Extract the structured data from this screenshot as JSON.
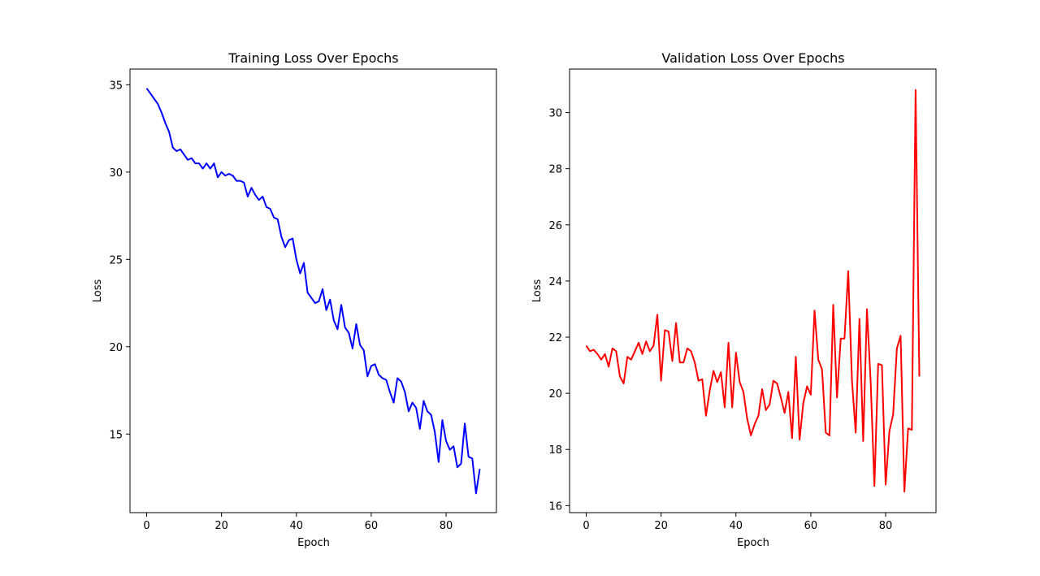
{
  "chart_data": [
    {
      "type": "line",
      "title": "Training Loss Over Epochs",
      "xlabel": "Epoch",
      "ylabel": "Loss",
      "xlim": [
        -4.45,
        93.45
      ],
      "ylim": [
        10.5,
        35.9
      ],
      "xticks": [
        0,
        20,
        40,
        60,
        80
      ],
      "yticks": [
        15,
        20,
        25,
        30,
        35
      ],
      "grid": false,
      "legend": "none",
      "series": [
        {
          "color": "#0000ff",
          "x": [
            0,
            1,
            2,
            3,
            4,
            5,
            6,
            7,
            8,
            9,
            10,
            11,
            12,
            13,
            14,
            15,
            16,
            17,
            18,
            19,
            20,
            21,
            22,
            23,
            24,
            25,
            26,
            27,
            28,
            29,
            30,
            31,
            32,
            33,
            34,
            35,
            36,
            37,
            38,
            39,
            40,
            41,
            42,
            43,
            44,
            45,
            46,
            47,
            48,
            49,
            50,
            51,
            52,
            53,
            54,
            55,
            56,
            57,
            58,
            59,
            60,
            61,
            62,
            63,
            64,
            65,
            66,
            67,
            68,
            69,
            70,
            71,
            72,
            73,
            74,
            75,
            76,
            77,
            78,
            79,
            80,
            81,
            82,
            83,
            84,
            85,
            86,
            87,
            88,
            89
          ],
          "y": [
            34.8,
            34.5,
            34.2,
            33.9,
            33.4,
            32.8,
            32.3,
            31.4,
            31.2,
            31.3,
            31.0,
            30.7,
            30.8,
            30.5,
            30.5,
            30.2,
            30.5,
            30.2,
            30.5,
            29.7,
            30.0,
            29.8,
            29.9,
            29.8,
            29.5,
            29.5,
            29.4,
            28.6,
            29.1,
            28.7,
            28.4,
            28.6,
            28.0,
            27.9,
            27.4,
            27.3,
            26.3,
            25.7,
            26.1,
            26.2,
            25.0,
            24.2,
            24.8,
            23.1,
            22.8,
            22.5,
            22.6,
            23.3,
            22.1,
            22.7,
            21.5,
            21.0,
            22.4,
            21.1,
            20.8,
            19.9,
            21.3,
            20.1,
            19.8,
            18.3,
            18.9,
            19.0,
            18.4,
            18.2,
            18.1,
            17.4,
            16.8,
            18.2,
            18.0,
            17.4,
            16.3,
            16.8,
            16.5,
            15.3,
            16.9,
            16.3,
            16.1,
            15.1,
            13.4,
            15.8,
            14.6,
            14.1,
            14.3,
            13.1,
            13.3,
            15.6,
            13.7,
            13.6,
            11.6,
            13.0
          ]
        }
      ]
    },
    {
      "type": "line",
      "title": "Validation Loss Over Epochs",
      "xlabel": "Epoch",
      "ylabel": "Loss",
      "xlim": [
        -4.45,
        93.45
      ],
      "ylim": [
        15.75,
        31.55
      ],
      "xticks": [
        0,
        20,
        40,
        60,
        80
      ],
      "yticks": [
        16,
        18,
        20,
        22,
        24,
        26,
        28,
        30
      ],
      "grid": false,
      "legend": "none",
      "series": [
        {
          "color": "#ff0000",
          "x": [
            0,
            1,
            2,
            3,
            4,
            5,
            6,
            7,
            8,
            9,
            10,
            11,
            12,
            13,
            14,
            15,
            16,
            17,
            18,
            19,
            20,
            21,
            22,
            23,
            24,
            25,
            26,
            27,
            28,
            29,
            30,
            31,
            32,
            33,
            34,
            35,
            36,
            37,
            38,
            39,
            40,
            41,
            42,
            43,
            44,
            45,
            46,
            47,
            48,
            49,
            50,
            51,
            52,
            53,
            54,
            55,
            56,
            57,
            58,
            59,
            60,
            61,
            62,
            63,
            64,
            65,
            66,
            67,
            68,
            69,
            70,
            71,
            72,
            73,
            74,
            75,
            76,
            77,
            78,
            79,
            80,
            81,
            82,
            83,
            84,
            85,
            86,
            87,
            88,
            89
          ],
          "y": [
            21.7,
            21.5,
            21.55,
            21.4,
            21.2,
            21.4,
            20.95,
            21.6,
            21.5,
            20.6,
            20.35,
            21.3,
            21.2,
            21.5,
            21.8,
            21.4,
            21.85,
            21.5,
            21.7,
            22.8,
            20.45,
            22.25,
            22.2,
            21.15,
            22.5,
            21.1,
            21.1,
            21.6,
            21.5,
            21.1,
            20.45,
            20.5,
            19.2,
            20.1,
            20.8,
            20.4,
            20.75,
            19.5,
            21.8,
            19.5,
            21.45,
            20.4,
            20.05,
            19.1,
            18.5,
            18.9,
            19.2,
            20.15,
            19.4,
            19.6,
            20.45,
            20.35,
            19.85,
            19.3,
            20.05,
            18.4,
            21.3,
            18.35,
            19.65,
            20.25,
            19.95,
            22.95,
            21.2,
            20.85,
            18.6,
            18.5,
            23.15,
            19.85,
            21.95,
            21.95,
            24.35,
            20.45,
            18.6,
            22.65,
            18.3,
            23.0,
            20.4,
            16.7,
            21.05,
            21.0,
            16.75,
            18.65,
            19.25,
            21.6,
            22.05,
            16.5,
            18.75,
            18.7,
            30.8,
            20.6
          ]
        }
      ]
    }
  ]
}
